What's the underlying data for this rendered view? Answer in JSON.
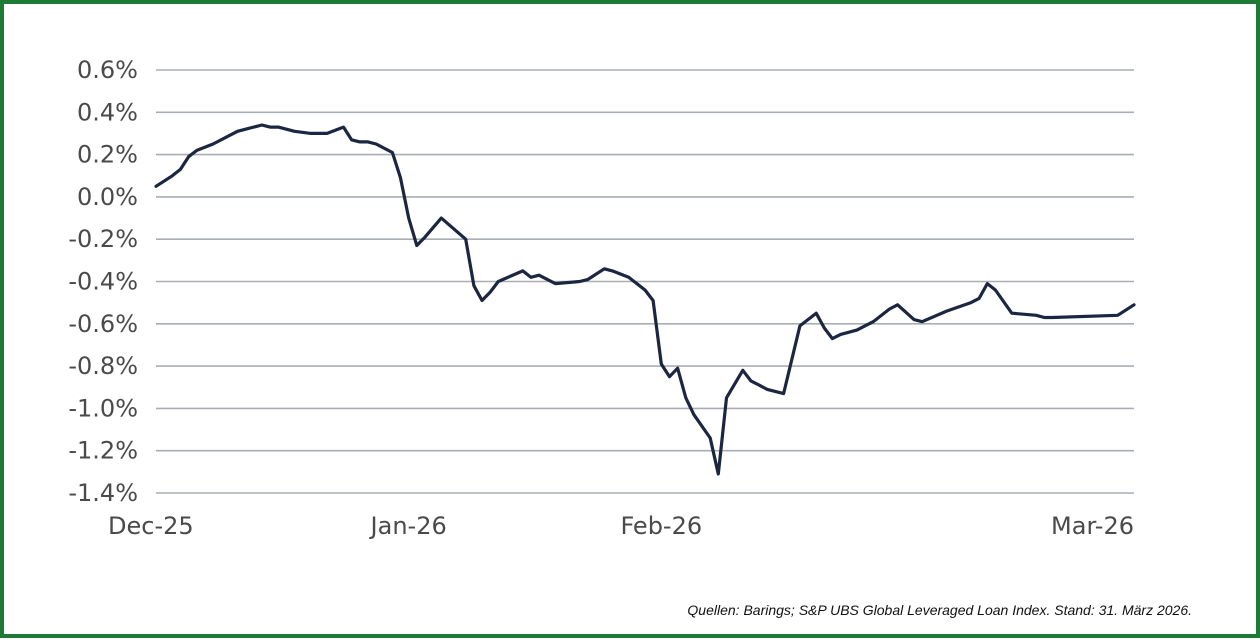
{
  "colors": {
    "frame": "#1f7a35",
    "line": "#1b2740",
    "grid": "#a9aeb5",
    "tick_text": "#4a4a4a"
  },
  "source_note": "Quellen: Barings; S&P UBS Global Leveraged Loan Index. Stand: 31. März 2026.",
  "chart_data": {
    "type": "line",
    "title": "",
    "xlabel": "",
    "ylabel": "",
    "y_unit": "%",
    "ylim": [
      -1.4,
      0.6
    ],
    "xlim": [
      "2025-12-01",
      "2026-03-31"
    ],
    "y_ticks": [
      0.6,
      0.4,
      0.2,
      0.0,
      -0.2,
      -0.4,
      -0.6,
      -0.8,
      -1.0,
      -1.2,
      -1.4
    ],
    "y_tick_labels": [
      "0.6%",
      "0.4%",
      "0.2%",
      "0.0%",
      "-0.2%",
      "-0.4%",
      "-0.6%",
      "-0.8%",
      "-1.0%",
      "-1.2%",
      "-1.4%"
    ],
    "x_ticks": [
      "2025-12-01",
      "2026-01-01",
      "2026-02-01",
      "2026-03-31"
    ],
    "x_tick_labels": [
      "Dec-25",
      "Jan-26",
      "Feb-26",
      "Mar-26"
    ],
    "grid": "horizontal",
    "legend": "none",
    "series": [
      {
        "x": [
          "2025-12-01",
          "2025-12-03",
          "2025-12-04",
          "2025-12-05",
          "2025-12-06",
          "2025-12-08",
          "2025-12-10",
          "2025-12-11",
          "2025-12-12",
          "2025-12-14",
          "2025-12-15",
          "2025-12-16",
          "2025-12-17",
          "2025-12-18",
          "2025-12-20",
          "2025-12-22",
          "2025-12-24",
          "2025-12-25",
          "2025-12-26",
          "2025-12-27",
          "2025-12-28",
          "2025-12-30",
          "2025-12-31",
          "2026-01-01",
          "2026-01-02",
          "2026-01-03",
          "2026-01-05",
          "2026-01-08",
          "2026-01-09",
          "2026-01-10",
          "2026-01-11",
          "2026-01-12",
          "2026-01-15",
          "2026-01-16",
          "2026-01-17",
          "2026-01-19",
          "2026-01-22",
          "2026-01-23",
          "2026-01-25",
          "2026-01-26",
          "2026-01-28",
          "2026-01-30",
          "2026-01-31",
          "2026-02-01",
          "2026-02-02",
          "2026-02-03",
          "2026-02-04",
          "2026-02-05",
          "2026-02-07",
          "2026-02-08",
          "2026-02-09",
          "2026-02-11",
          "2026-02-12",
          "2026-02-13",
          "2026-02-14",
          "2026-02-16",
          "2026-02-18",
          "2026-02-20",
          "2026-02-21",
          "2026-02-22",
          "2026-02-23",
          "2026-02-25",
          "2026-02-27",
          "2026-03-01",
          "2026-03-02",
          "2026-03-04",
          "2026-03-05",
          "2026-03-08",
          "2026-03-11",
          "2026-03-12",
          "2026-03-13",
          "2026-03-14",
          "2026-03-16",
          "2026-03-19",
          "2026-03-20",
          "2026-03-21",
          "2026-03-29",
          "2026-03-31"
        ],
        "y": [
          0.05,
          0.1,
          0.13,
          0.19,
          0.22,
          0.25,
          0.29,
          0.31,
          0.32,
          0.34,
          0.33,
          0.33,
          0.32,
          0.31,
          0.3,
          0.3,
          0.33,
          0.27,
          0.26,
          0.26,
          0.25,
          0.21,
          0.09,
          -0.1,
          -0.23,
          -0.19,
          -0.1,
          -0.2,
          -0.42,
          -0.49,
          -0.45,
          -0.4,
          -0.35,
          -0.38,
          -0.37,
          -0.41,
          -0.4,
          -0.39,
          -0.34,
          -0.35,
          -0.38,
          -0.44,
          -0.49,
          -0.79,
          -0.85,
          -0.81,
          -0.95,
          -1.03,
          -1.14,
          -1.31,
          -0.95,
          -0.82,
          -0.87,
          -0.89,
          -0.91,
          -0.93,
          -0.61,
          -0.55,
          -0.62,
          -0.67,
          -0.65,
          -0.63,
          -0.59,
          -0.53,
          -0.51,
          -0.58,
          -0.59,
          -0.54,
          -0.5,
          -0.48,
          -0.41,
          -0.44,
          -0.55,
          -0.56,
          -0.57,
          -0.57,
          -0.56,
          -0.51
        ]
      }
    ]
  }
}
